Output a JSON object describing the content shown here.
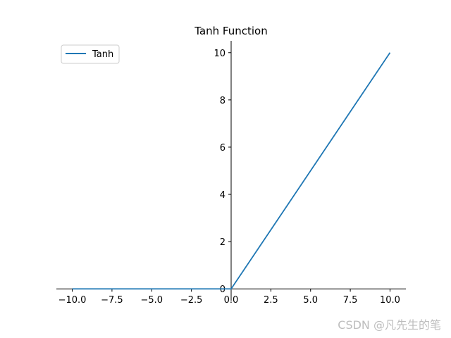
{
  "chart_data": {
    "type": "line",
    "title": "Tanh Function",
    "xlabel": "",
    "ylabel": "",
    "xlim": [
      -11,
      11
    ],
    "ylim": [
      -0.5,
      10.5
    ],
    "x_ticks": [
      -10.0,
      -7.5,
      -5.0,
      -2.5,
      0.0,
      2.5,
      5.0,
      7.5,
      10.0
    ],
    "x_tick_labels": [
      "−10.0",
      "−7.5",
      "−5.0",
      "−2.5",
      "0.0",
      "2.5",
      "5.0",
      "7.5",
      "10.0"
    ],
    "y_ticks": [
      0,
      2,
      4,
      6,
      8,
      10
    ],
    "y_tick_labels": [
      "0",
      "2",
      "4",
      "6",
      "8",
      "10"
    ],
    "grid": false,
    "spines": "centered at origin",
    "legend_position": "top-left",
    "series": [
      {
        "name": "Tanh",
        "color": "#1f77b4",
        "x": [
          -10,
          0,
          10
        ],
        "y": [
          0,
          0,
          10
        ]
      }
    ]
  },
  "watermark": "CSDN @凡先生的笔"
}
